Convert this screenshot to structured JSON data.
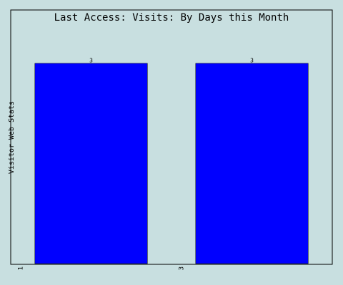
{
  "chart_data": {
    "type": "bar",
    "title": "Last Access: Visits: By Days this Month",
    "xlabel": "",
    "ylabel": "Visitor Web Stats",
    "categories": [
      "1",
      "3"
    ],
    "values": [
      3,
      3
    ],
    "ylim": [
      0,
      3.8
    ],
    "grid": false,
    "legend": "none",
    "colors": {
      "background": "#c8dfe0",
      "bar": "#0000ff",
      "bar_outline": "#000000",
      "frame": "#000000",
      "text": "#000000"
    }
  }
}
